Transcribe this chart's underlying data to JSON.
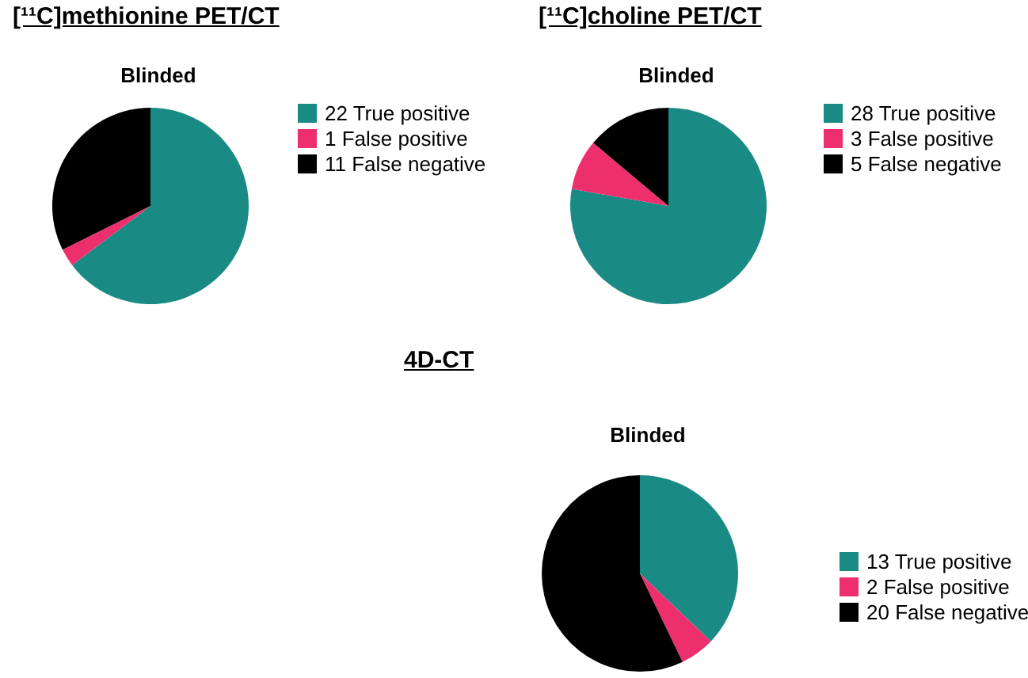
{
  "chart_data": [
    {
      "type": "pie",
      "title": "[¹¹C]methionine PET/CT",
      "subtitle": "Blinded",
      "categories": [
        "22 True positive",
        "1 False positive",
        "11 False negative"
      ],
      "values": [
        22,
        1,
        11
      ],
      "colors": [
        "#1a8a84",
        "#ee2f6e",
        "#000000"
      ],
      "legend": "right"
    },
    {
      "type": "pie",
      "title": "[¹¹C]choline PET/CT",
      "subtitle": "Blinded",
      "categories": [
        "28 True positive",
        "3 False positive",
        "5 False negative"
      ],
      "values": [
        28,
        3,
        5
      ],
      "colors": [
        "#1a8a84",
        "#ee2f6e",
        "#000000"
      ],
      "legend": "right"
    },
    {
      "type": "pie",
      "title": "4D-CT",
      "subtitle": "Blinded",
      "categories": [
        "13 True positive",
        "2 False positive",
        "20 False negative"
      ],
      "values": [
        13,
        2,
        20
      ],
      "colors": [
        "#1a8a84",
        "#ee2f6e",
        "#000000"
      ],
      "legend": "right"
    }
  ]
}
